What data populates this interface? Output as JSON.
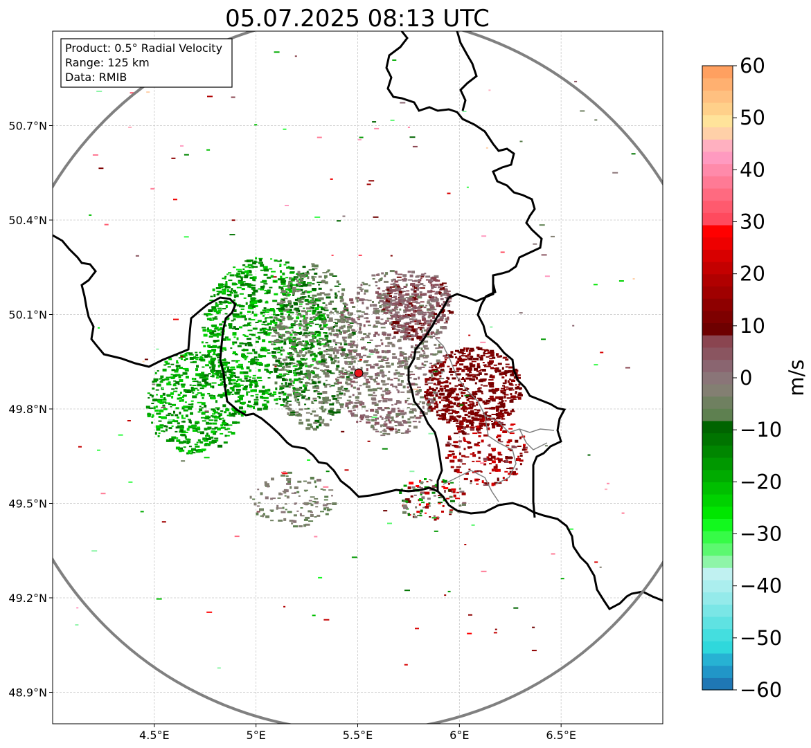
{
  "title": "05.07.2025 08:13 UTC",
  "info_box": {
    "product": "Product: 0.5° Radial Velocity",
    "range": "Range: 125 km",
    "data": "Data: RMIB"
  },
  "map": {
    "lon_range": [
      4.0,
      7.0
    ],
    "lat_range": [
      48.8,
      51.0
    ],
    "lon_ticks": [
      {
        "value": 4.5,
        "label": "4.5°E"
      },
      {
        "value": 5.0,
        "label": "5°E"
      },
      {
        "value": 5.5,
        "label": "5.5°E"
      },
      {
        "value": 6.0,
        "label": "6°E"
      },
      {
        "value": 6.5,
        "label": "6.5°E"
      }
    ],
    "lat_ticks": [
      {
        "value": 50.7,
        "label": "50.7°N"
      },
      {
        "value": 50.4,
        "label": "50.4°N"
      },
      {
        "value": 50.1,
        "label": "50.1°N"
      },
      {
        "value": 49.8,
        "label": "49.8°N"
      },
      {
        "value": 49.5,
        "label": "49.5°N"
      },
      {
        "value": 49.2,
        "label": "49.2°N"
      },
      {
        "value": 48.9,
        "label": "48.9°N"
      }
    ],
    "grid": true,
    "radar_site": {
      "lon": 5.505,
      "lat": 49.914
    },
    "range_km": 125,
    "colors": {
      "range_ring": "#808080",
      "border": "#000000",
      "admin_border": "#7f7f7f",
      "radar_marker": "#e8161c"
    }
  },
  "colorbar": {
    "label": "m/s",
    "min": -60,
    "max": 60,
    "ticks": [
      {
        "value": 60,
        "label": "60"
      },
      {
        "value": 50,
        "label": "50"
      },
      {
        "value": 40,
        "label": "40"
      },
      {
        "value": 30,
        "label": "30"
      },
      {
        "value": 20,
        "label": "20"
      },
      {
        "value": 10,
        "label": "10"
      },
      {
        "value": 0,
        "label": "0"
      },
      {
        "value": -10,
        "label": "−10"
      },
      {
        "value": -20,
        "label": "−20"
      },
      {
        "value": -30,
        "label": "−30"
      },
      {
        "value": -40,
        "label": "−40"
      },
      {
        "value": -50,
        "label": "−50"
      },
      {
        "value": -60,
        "label": "−60"
      }
    ],
    "colors_bottom_to_top": [
      "#1f77b4",
      "#2196c8",
      "#27b2d3",
      "#2fd8dc",
      "#44dedf",
      "#5fe2e2",
      "#7ae6e6",
      "#94eaea",
      "#abeeee",
      "#c0f1f1",
      "#8ef5a8",
      "#5cf870",
      "#36fb47",
      "#12f91e",
      "#00e600",
      "#00d200",
      "#00bf00",
      "#00ab00",
      "#009800",
      "#008600",
      "#007400",
      "#006400",
      "#5e8050",
      "#6f8060",
      "#837f72",
      "#8a7578",
      "#8a6570",
      "#8a5560",
      "#8a4550",
      "#6e0000",
      "#7e0000",
      "#8e0000",
      "#a00000",
      "#b00000",
      "#c40000",
      "#d80000",
      "#ee0000",
      "#ff0000",
      "#ff4a5e",
      "#ff5a6e",
      "#ff6a80",
      "#ff7a95",
      "#ff8aaa",
      "#ff9ac0",
      "#ffb0c0",
      "#ffd0a8",
      "#ffe39a",
      "#ffd08a",
      "#ffc080",
      "#ffb070",
      "#ffa060"
    ]
  }
}
